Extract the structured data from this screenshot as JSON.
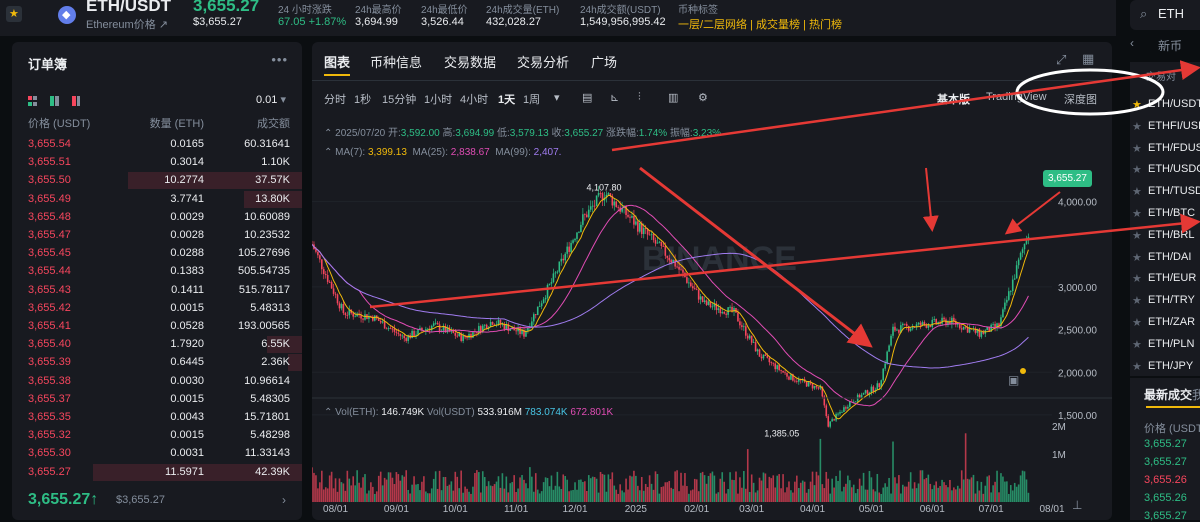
{
  "header": {
    "pair": "ETH/USDT",
    "price": "3,655.27",
    "subtitle": "Ethereum价格",
    "price_usd": "$3,655.27",
    "stats": [
      {
        "label": "24 小时涨跌",
        "value": "67.05 +1.87%"
      },
      {
        "label": "24h最高价",
        "value": "3,694.99"
      },
      {
        "label": "24h最低价",
        "value": "3,526.44"
      },
      {
        "label": "24h成交量(ETH)",
        "value": "432,028.27"
      },
      {
        "label": "24h成交额(USDT)",
        "value": "1,549,956,995.42"
      }
    ],
    "tag_label": "币种标签",
    "tags": [
      "一层/二层网络",
      "成交量榜",
      "热门榜"
    ]
  },
  "orderbook": {
    "title": "订单簿",
    "precision": "0.01",
    "col_price": "价格 (USDT)",
    "col_amount": "数量 (ETH)",
    "col_total": "成交额",
    "rows": [
      {
        "price": "3,655.54",
        "amount": "0.0165",
        "total": "60.31641",
        "depth": 0
      },
      {
        "price": "3,655.51",
        "amount": "0.3014",
        "total": "1.10K",
        "depth": 0
      },
      {
        "price": "3,655.50",
        "amount": "10.2774",
        "total": "37.57K",
        "depth": 0.6
      },
      {
        "price": "3,655.49",
        "amount": "3.7741",
        "total": "13.80K",
        "depth": 0.2
      },
      {
        "price": "3,655.48",
        "amount": "0.0029",
        "total": "10.60089",
        "depth": 0
      },
      {
        "price": "3,655.47",
        "amount": "0.0028",
        "total": "10.23532",
        "depth": 0
      },
      {
        "price": "3,655.45",
        "amount": "0.0288",
        "total": "105.27696",
        "depth": 0
      },
      {
        "price": "3,655.44",
        "amount": "0.1383",
        "total": "505.54735",
        "depth": 0
      },
      {
        "price": "3,655.43",
        "amount": "0.1411",
        "total": "515.78117",
        "depth": 0
      },
      {
        "price": "3,655.42",
        "amount": "0.0015",
        "total": "5.48313",
        "depth": 0
      },
      {
        "price": "3,655.41",
        "amount": "0.0528",
        "total": "193.00565",
        "depth": 0
      },
      {
        "price": "3,655.40",
        "amount": "1.7920",
        "total": "6.55K",
        "depth": 0.12
      },
      {
        "price": "3,655.39",
        "amount": "0.6445",
        "total": "2.36K",
        "depth": 0.05
      },
      {
        "price": "3,655.38",
        "amount": "0.0030",
        "total": "10.96614",
        "depth": 0
      },
      {
        "price": "3,655.37",
        "amount": "0.0015",
        "total": "5.48305",
        "depth": 0
      },
      {
        "price": "3,655.35",
        "amount": "0.0043",
        "total": "15.71801",
        "depth": 0
      },
      {
        "price": "3,655.32",
        "amount": "0.0015",
        "total": "5.48298",
        "depth": 0
      },
      {
        "price": "3,655.30",
        "amount": "0.0031",
        "total": "11.33143",
        "depth": 0
      },
      {
        "price": "3,655.27",
        "amount": "11.5971",
        "total": "42.39K",
        "depth": 0.72
      }
    ],
    "last_price": "3,655.27",
    "last_price_usd": "$3,655.27"
  },
  "chart_panel": {
    "tabs": [
      "图表",
      "币种信息",
      "交易数据",
      "交易分析",
      "广场"
    ],
    "timeframes": [
      "分时",
      "1秒",
      "15分钟",
      "1小时",
      "4小时",
      "1天",
      "1周"
    ],
    "active_timeframe": "1天",
    "views": [
      "基本版",
      "TradingView",
      "深度图"
    ],
    "ohlc": {
      "date": "2025/07/20",
      "open_label": "开:",
      "open": "3,592.00",
      "high_label": "高:",
      "high": "3,694.99",
      "low_label": "低:",
      "low": "3,579.13",
      "close_label": "收:",
      "close": "3,655.27",
      "chg_label": "涨跌幅:",
      "chg": "1.74%",
      "amp_label": "振幅:",
      "amp": "3.23%"
    },
    "ma": [
      {
        "label": "MA(7):",
        "value": "3,399.13",
        "color": "#f0b90b"
      },
      {
        "label": "MA(25):",
        "value": "2,838.67",
        "color": "#e04cb4"
      },
      {
        "label": "MA(99):",
        "value": "2,407.",
        "color": "#a07cf0"
      }
    ],
    "vol": {
      "label_eth": "Vol(ETH):",
      "eth": "146.749K",
      "label_usdt": "Vol(USDT)",
      "usdt": "533.916M",
      "v1": "783.074K",
      "v2": "672.801K"
    },
    "watermark": "BINANCE",
    "high_annot": "4,107.80",
    "low_annot": "1,385.05",
    "current_tag": "3,655.27"
  },
  "chart_data": {
    "type": "line",
    "title": "",
    "y_ticks": [
      4000,
      3000,
      2500,
      2000,
      1500
    ],
    "y_tick_labels": [
      "4,000.00",
      "3,000.00",
      "2,500.00",
      "2,000.00",
      "1,500.00"
    ],
    "vol_ticks": [
      "2M",
      "1M"
    ],
    "x_labels": [
      "08/01",
      "09/01",
      "10/01",
      "11/01",
      "12/01",
      "2025",
      "02/01",
      "03/01",
      "04/01",
      "05/01",
      "06/01",
      "07/01",
      "08/01"
    ],
    "ylim": [
      1300,
      4300
    ],
    "x": [
      "2024-07-20",
      "2024-08-05",
      "2024-08-20",
      "2024-09-05",
      "2024-09-20",
      "2024-10-05",
      "2024-10-20",
      "2024-11-05",
      "2024-11-20",
      "2024-12-05",
      "2024-12-16",
      "2025-01-05",
      "2025-01-20",
      "2025-02-05",
      "2025-02-20",
      "2025-03-05",
      "2025-03-20",
      "2025-04-05",
      "2025-04-09",
      "2025-04-20",
      "2025-05-05",
      "2025-05-12",
      "2025-05-25",
      "2025-06-10",
      "2025-06-25",
      "2025-07-05",
      "2025-07-20"
    ],
    "series": [
      {
        "values": [
          3500,
          2700,
          2650,
          2400,
          2550,
          2400,
          2600,
          2450,
          3100,
          3800,
          4107,
          3650,
          3300,
          2800,
          2700,
          2200,
          1950,
          1800,
          1385,
          1650,
          1850,
          2500,
          2550,
          2600,
          2450,
          2550,
          3655
        ]
      }
    ]
  },
  "right_panel": {
    "search_value": "ETH",
    "tab": "新币",
    "section": "交易对",
    "pairs": [
      "ETH/USDT",
      "ETHFI/USDT",
      "ETH/FDUSD",
      "ETH/USDC",
      "ETH/TUSD",
      "ETH/BTC",
      "ETH/BRL",
      "ETH/DAI",
      "ETH/EUR",
      "ETH/TRY",
      "ETH/ZAR",
      "ETH/PLN",
      "ETH/JPY"
    ],
    "trades_title": "最新成交",
    "trades_col": "价格 (USDT)",
    "trades": [
      {
        "price": "3,655.27",
        "side": "buy"
      },
      {
        "price": "3,655.27",
        "side": "buy"
      },
      {
        "price": "3,655.26",
        "side": "sell"
      },
      {
        "price": "3,655.26",
        "side": "buy"
      },
      {
        "price": "3,655.27",
        "side": "buy"
      }
    ]
  }
}
